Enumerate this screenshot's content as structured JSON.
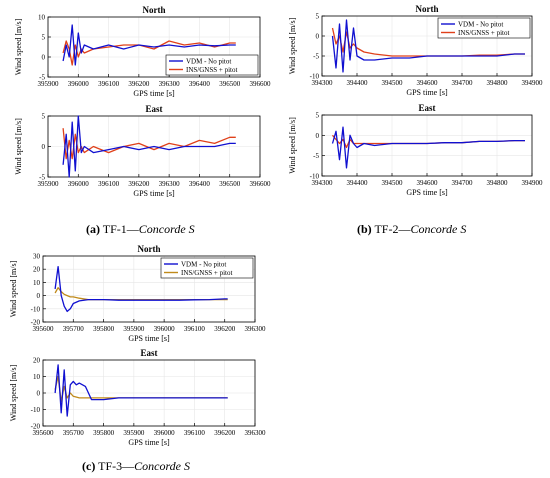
{
  "captions": [
    {
      "letter": "(a)",
      "text": " TF-1—",
      "name": "Concorde S"
    },
    {
      "letter": "(b)",
      "text": " TF-2—",
      "name": "Concorde S"
    },
    {
      "letter": "(c)",
      "text": " TF-3—",
      "name": "Concorde S"
    }
  ],
  "colors": {
    "vdm": "#1010d0",
    "ins": "#e0401a",
    "ins_tf3": "#c08a1a",
    "axis": "#000000",
    "grid": "#e6e6e6"
  },
  "chart_data": [
    {
      "id": "tf1-north",
      "type": "line",
      "title": "North",
      "xlabel": "GPS time [s]",
      "ylabel": "Wind speed [m/s]",
      "xlim": [
        395900,
        396600
      ],
      "ylim": [
        -5,
        10
      ],
      "xticks": [
        395900,
        396000,
        396100,
        396200,
        396300,
        396400,
        396500,
        396600
      ],
      "yticks": [
        -5,
        0,
        5,
        10
      ],
      "legend": {
        "position": "bottom-right",
        "entries": [
          "VDM - No pitot",
          "INS/GNSS + pitot"
        ]
      },
      "series": [
        {
          "name": "VDM - No pitot",
          "x": [
            395950,
            395960,
            395970,
            395980,
            395990,
            396000,
            396010,
            396020,
            396050,
            396100,
            396150,
            396200,
            396250,
            396300,
            396350,
            396400,
            396450,
            396500,
            396520
          ],
          "y": [
            -1,
            3,
            0,
            8,
            -2,
            6,
            1,
            3,
            2,
            3,
            2,
            3,
            2.5,
            3,
            2.5,
            3,
            2.8,
            3,
            3
          ]
        },
        {
          "name": "INS/GNSS + pitot",
          "x": [
            395950,
            395960,
            395970,
            395980,
            395990,
            396000,
            396010,
            396020,
            396050,
            396100,
            396150,
            396200,
            396250,
            396300,
            396350,
            396400,
            396450,
            396500,
            396520
          ],
          "y": [
            1,
            4,
            2,
            -2,
            3,
            0,
            2,
            1,
            2,
            2.5,
            3,
            3,
            2,
            4,
            3,
            3.5,
            2.5,
            3.5,
            3.5
          ]
        }
      ]
    },
    {
      "id": "tf1-east",
      "type": "line",
      "title": "East",
      "xlabel": "GPS time [s]",
      "ylabel": "Wind speed [m/s]",
      "xlim": [
        395900,
        396600
      ],
      "ylim": [
        -5,
        5
      ],
      "xticks": [
        395900,
        396000,
        396100,
        396200,
        396300,
        396400,
        396500,
        396600
      ],
      "yticks": [
        -5,
        0,
        5
      ],
      "series": [
        {
          "name": "VDM - No pitot",
          "x": [
            395950,
            395960,
            395970,
            395980,
            395990,
            396000,
            396010,
            396020,
            396050,
            396100,
            396150,
            396200,
            396250,
            396300,
            396350,
            396400,
            396450,
            396500,
            396520
          ],
          "y": [
            -3,
            2,
            -5,
            4,
            -4,
            5,
            -1,
            0,
            -1,
            -0.5,
            0,
            -0.5,
            0,
            -0.5,
            0,
            0,
            0,
            0.5,
            0.5
          ]
        },
        {
          "name": "INS/GNSS + pitot",
          "x": [
            395950,
            395960,
            395970,
            395980,
            395990,
            396000,
            396010,
            396020,
            396050,
            396100,
            396150,
            396200,
            396250,
            396300,
            396350,
            396400,
            396450,
            396500,
            396520
          ],
          "y": [
            3,
            -2,
            1,
            -2,
            2,
            -1,
            0,
            -1,
            0,
            -1,
            0,
            0.5,
            -0.5,
            0.5,
            0,
            1,
            0.5,
            1.5,
            1.5
          ]
        }
      ]
    },
    {
      "id": "tf2-north",
      "type": "line",
      "title": "North",
      "xlabel": "GPS time [s]",
      "ylabel": "Wind speed [m/s]",
      "xlim": [
        394300,
        394900
      ],
      "ylim": [
        -10,
        5
      ],
      "xticks": [
        394300,
        394400,
        394500,
        394600,
        394700,
        394800,
        394900
      ],
      "yticks": [
        -10,
        -5,
        0,
        5
      ],
      "legend": {
        "position": "top-right",
        "entries": [
          "VDM - No pitot",
          "INS/GNSS + pitot"
        ]
      },
      "series": [
        {
          "name": "VDM - No pitot",
          "x": [
            394330,
            394340,
            394350,
            394360,
            394370,
            394380,
            394390,
            394400,
            394420,
            394450,
            394500,
            394550,
            394600,
            394650,
            394700,
            394750,
            394800,
            394850,
            394880
          ],
          "y": [
            0,
            -8,
            3,
            -9,
            4,
            -6,
            2,
            -5,
            -6,
            -6,
            -5.5,
            -5.5,
            -5,
            -5,
            -5,
            -5,
            -5,
            -4.5,
            -4.5
          ]
        },
        {
          "name": "INS/GNSS + pitot",
          "x": [
            394330,
            394340,
            394350,
            394360,
            394370,
            394380,
            394390,
            394400,
            394420,
            394450,
            394500,
            394550,
            394600,
            394650,
            394700,
            394750,
            394800,
            394850,
            394880
          ],
          "y": [
            2,
            -2,
            0,
            -4,
            1,
            -3,
            -2,
            -3,
            -4,
            -4.5,
            -5,
            -5,
            -5,
            -5,
            -5,
            -4.8,
            -4.8,
            -4.5,
            -4.5
          ]
        }
      ]
    },
    {
      "id": "tf2-east",
      "type": "line",
      "title": "East",
      "xlabel": "GPS time [s]",
      "ylabel": "Wind speed [m/s]",
      "xlim": [
        394300,
        394900
      ],
      "ylim": [
        -10,
        5
      ],
      "xticks": [
        394300,
        394400,
        394500,
        394600,
        394700,
        394800,
        394900
      ],
      "yticks": [
        -10,
        -5,
        0,
        5
      ],
      "series": [
        {
          "name": "VDM - No pitot",
          "x": [
            394330,
            394340,
            394350,
            394360,
            394370,
            394380,
            394390,
            394400,
            394420,
            394450,
            394500,
            394550,
            394600,
            394650,
            394700,
            394750,
            394800,
            394850,
            394880
          ],
          "y": [
            -2,
            1,
            -6,
            2,
            -8,
            0,
            -2,
            -3,
            -2,
            -2.5,
            -2,
            -2,
            -2,
            -1.8,
            -1.8,
            -1.5,
            -1.5,
            -1.3,
            -1.3
          ]
        },
        {
          "name": "INS/GNSS + pitot",
          "x": [
            394330,
            394340,
            394350,
            394360,
            394370,
            394380,
            394390,
            394400,
            394420,
            394450,
            394500,
            394550,
            394600,
            394650,
            394700,
            394750,
            394800,
            394850,
            394880
          ],
          "y": [
            0,
            -1,
            -2,
            -1,
            -3,
            -1,
            -2,
            -2,
            -2,
            -2,
            -2,
            -2,
            -2,
            -1.8,
            -1.8,
            -1.5,
            -1.5,
            -1.3,
            -1.3
          ]
        }
      ]
    },
    {
      "id": "tf3-north",
      "type": "line",
      "title": "North",
      "xlabel": "GPS time [s]",
      "ylabel": "Wind speed [m/s]",
      "xlim": [
        395600,
        396300
      ],
      "ylim": [
        -20,
        30
      ],
      "xticks": [
        395600,
        395700,
        395800,
        395900,
        396000,
        396100,
        396200,
        396300
      ],
      "yticks": [
        -20,
        -10,
        0,
        10,
        20,
        30
      ],
      "legend": {
        "position": "top-right",
        "entries": [
          "VDM - No pitot",
          "INS/GNSS + pitot"
        ]
      },
      "series": [
        {
          "name": "VDM - No pitot",
          "x": [
            395640,
            395650,
            395660,
            395670,
            395680,
            395690,
            395700,
            395720,
            395750,
            395800,
            395850,
            395900,
            395950,
            396000,
            396050,
            396100,
            396150,
            396200,
            396210
          ],
          "y": [
            5,
            22,
            0,
            -8,
            -12,
            -10,
            -6,
            -4,
            -3,
            -3,
            -3.5,
            -3.5,
            -3.5,
            -3.5,
            -3.5,
            -3.2,
            -3,
            -2.5,
            -2.5
          ]
        },
        {
          "name": "INS/GNSS + pitot",
          "x": [
            395640,
            395650,
            395660,
            395670,
            395680,
            395690,
            395700,
            395720,
            395750,
            395800,
            395850,
            395900,
            395950,
            396000,
            396050,
            396100,
            396150,
            396200,
            396210
          ],
          "y": [
            2,
            6,
            3,
            1,
            0,
            -1,
            -1,
            -2,
            -3,
            -3,
            -3,
            -3,
            -3,
            -3,
            -3,
            -3,
            -3,
            -3,
            -3
          ]
        }
      ]
    },
    {
      "id": "tf3-east",
      "type": "line",
      "title": "East",
      "xlabel": "GPS time [s]",
      "ylabel": "Wind speed [m/s]",
      "xlim": [
        395600,
        396300
      ],
      "ylim": [
        -20,
        20
      ],
      "xticks": [
        395600,
        395700,
        395800,
        395900,
        396000,
        396100,
        396200,
        396300
      ],
      "yticks": [
        -20,
        -10,
        0,
        10,
        20
      ],
      "series": [
        {
          "name": "VDM - No pitot",
          "x": [
            395640,
            395650,
            395660,
            395670,
            395680,
            395690,
            395700,
            395710,
            395720,
            395740,
            395760,
            395800,
            395850,
            395900,
            395950,
            396000,
            396050,
            396100,
            396150,
            396200,
            396210
          ],
          "y": [
            0,
            17,
            -12,
            14,
            -14,
            5,
            7,
            5,
            6,
            4,
            -4,
            -4,
            -3,
            -3,
            -3,
            -3,
            -3,
            -3,
            -3,
            -3,
            -3
          ]
        },
        {
          "name": "INS/GNSS + pitot",
          "x": [
            395640,
            395650,
            395660,
            395670,
            395680,
            395690,
            395700,
            395720,
            395750,
            395800,
            395850,
            395900,
            395950,
            396000,
            396050,
            396100,
            396150,
            396200,
            396210
          ],
          "y": [
            2,
            10,
            -5,
            4,
            -3,
            0,
            -2,
            -3,
            -3,
            -3,
            -3,
            -3,
            -3,
            -3,
            -3,
            -3,
            -3,
            -3,
            -3
          ]
        }
      ]
    }
  ]
}
